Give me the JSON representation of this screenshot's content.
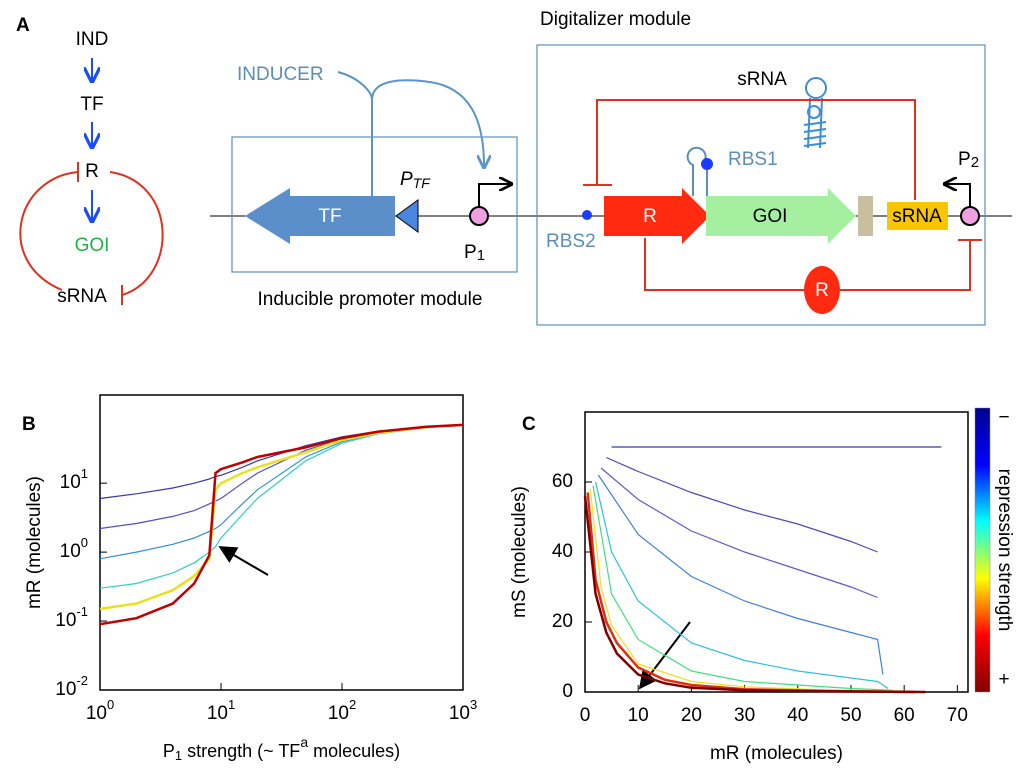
{
  "diagram": {
    "panel_label": "A",
    "pathway": [
      "IND",
      "TF",
      "R",
      "GOI",
      "sRNA"
    ],
    "inducer": "INDUCER",
    "tf_gene": "TF",
    "ptf": {
      "main": "P",
      "sub": "TF"
    },
    "p1": {
      "main": "P",
      "sub": "1"
    },
    "inducible_module": "Inducible promoter module",
    "digitalizer_module": "Digitalizer module",
    "srna_hairpin": "sRNA",
    "rbs1": "RBS1",
    "rbs2": "RBS2",
    "r_gene": "R",
    "goi_gene": "GOI",
    "srna_gene": "sRNA",
    "p2": {
      "main": "P",
      "sub": "2"
    },
    "r_protein": "R"
  },
  "chart_data": [
    {
      "type": "line",
      "panel_label": "B",
      "ylabel": "mR (molecules)",
      "xlabel": [
        "P",
        "1",
        " strength (~ TF",
        "a",
        " molecules)"
      ],
      "log_x": true,
      "log_y": true,
      "xlim": [
        1,
        1000
      ],
      "xticks": [
        {
          "value": 1,
          "label": "10",
          "exponent": "0"
        },
        {
          "value": 10,
          "label": "10",
          "exponent": "1"
        },
        {
          "value": 100,
          "label": "10",
          "exponent": "2"
        },
        {
          "value": 1000,
          "label": "10",
          "exponent": "3"
        }
      ],
      "ylim": [
        0.01,
        190
      ],
      "yticks": [
        {
          "value": 0.01,
          "label": "10",
          "exponent": "-2"
        },
        {
          "value": 0.1,
          "label": "10",
          "exponent": "-1"
        },
        {
          "value": 1,
          "label": "10",
          "exponent": "0"
        },
        {
          "value": 10,
          "label": "10",
          "exponent": "1"
        }
      ],
      "x": [
        1,
        2,
        4,
        6,
        8,
        9,
        10,
        15,
        20,
        50,
        100,
        200,
        500,
        1000
      ],
      "series": [
        {
          "color": "#3a3aa8",
          "values": [
            6,
            7,
            8.5,
            10,
            11.5,
            12.5,
            13,
            17,
            21,
            35,
            47,
            57,
            66,
            70
          ]
        },
        {
          "color": "#5050c8",
          "values": [
            2.2,
            2.6,
            3.3,
            4,
            5,
            5.5,
            6,
            10,
            14,
            30,
            44,
            55,
            65,
            70
          ]
        },
        {
          "color": "#3090e0",
          "values": [
            0.8,
            1,
            1.3,
            1.6,
            2,
            2.2,
            2.5,
            5,
            8,
            24,
            40,
            53,
            64,
            70
          ]
        },
        {
          "color": "#30d0c0",
          "values": [
            0.3,
            0.35,
            0.5,
            0.7,
            1,
            1.2,
            1.6,
            3.5,
            6,
            21,
            38,
            52,
            64,
            70
          ]
        },
        {
          "color": "#e8e020",
          "values": [
            0.15,
            0.18,
            0.28,
            0.45,
            0.8,
            8,
            10,
            14,
            17,
            28,
            42,
            54,
            65,
            70
          ]
        },
        {
          "color": "#c00000",
          "values": [
            0.09,
            0.11,
            0.18,
            0.35,
            0.9,
            14,
            16,
            20,
            24,
            33,
            45,
            56,
            66,
            70
          ]
        }
      ]
    },
    {
      "type": "line",
      "panel_label": "C",
      "ylabel": "mS (molecules)",
      "xlabel": "mR (molecules)",
      "xlim": [
        0,
        72
      ],
      "xticks": [
        0,
        10,
        20,
        30,
        40,
        50,
        60,
        70
      ],
      "ylim": [
        0,
        80
      ],
      "yticks": [
        0,
        20,
        40,
        60
      ],
      "colorbar": {
        "label": "repression strength",
        "top": "−",
        "bottom": "+",
        "colors": [
          "#00008f",
          "#0000ff",
          "#00ffff",
          "#ffff00",
          "#ff0000",
          "#800000"
        ]
      },
      "series": [
        {
          "color": "#3a3aa8",
          "x": [
            5,
            67
          ],
          "values": [
            70,
            70
          ]
        },
        {
          "color": "#4b4bc0",
          "x": [
            4,
            10,
            20,
            30,
            40,
            50,
            55
          ],
          "values": [
            67,
            63,
            57,
            52,
            48,
            43,
            40
          ]
        },
        {
          "color": "#5a5ad0",
          "x": [
            3,
            10,
            20,
            30,
            40,
            50,
            55
          ],
          "values": [
            64,
            55,
            46,
            40,
            35,
            30,
            27
          ]
        },
        {
          "color": "#4080e0",
          "x": [
            2.5,
            10,
            20,
            30,
            40,
            50,
            55,
            56
          ],
          "values": [
            62,
            45,
            33,
            26,
            21,
            17,
            15,
            5
          ]
        },
        {
          "color": "#30c0e0",
          "x": [
            2,
            5,
            10,
            20,
            30,
            40,
            50,
            55,
            57
          ],
          "values": [
            60,
            40,
            26,
            14,
            9,
            6,
            4,
            3,
            1
          ]
        },
        {
          "color": "#40e080",
          "x": [
            1.5,
            5,
            10,
            20,
            30,
            40,
            50,
            58
          ],
          "values": [
            59,
            28,
            15,
            6,
            3,
            2,
            1,
            0.5
          ]
        },
        {
          "color": "#f0e020",
          "x": [
            1,
            3,
            5,
            10,
            20,
            30,
            45,
            60
          ],
          "values": [
            58,
            30,
            19,
            8,
            3,
            1.5,
            0.6,
            0.3
          ]
        },
        {
          "color": "#e03010",
          "x": [
            0.5,
            2,
            4,
            6,
            10,
            15,
            20,
            30,
            45,
            62
          ],
          "values": [
            57,
            32,
            20,
            14,
            7,
            3.5,
            2,
            0.8,
            0.3,
            0
          ]
        },
        {
          "color": "#800000",
          "x": [
            0,
            2,
            4,
            6,
            10,
            15,
            20,
            30,
            45,
            64
          ],
          "values": [
            56,
            28,
            17,
            11,
            5,
            2.5,
            1.2,
            0.5,
            0.2,
            0
          ]
        }
      ]
    }
  ]
}
